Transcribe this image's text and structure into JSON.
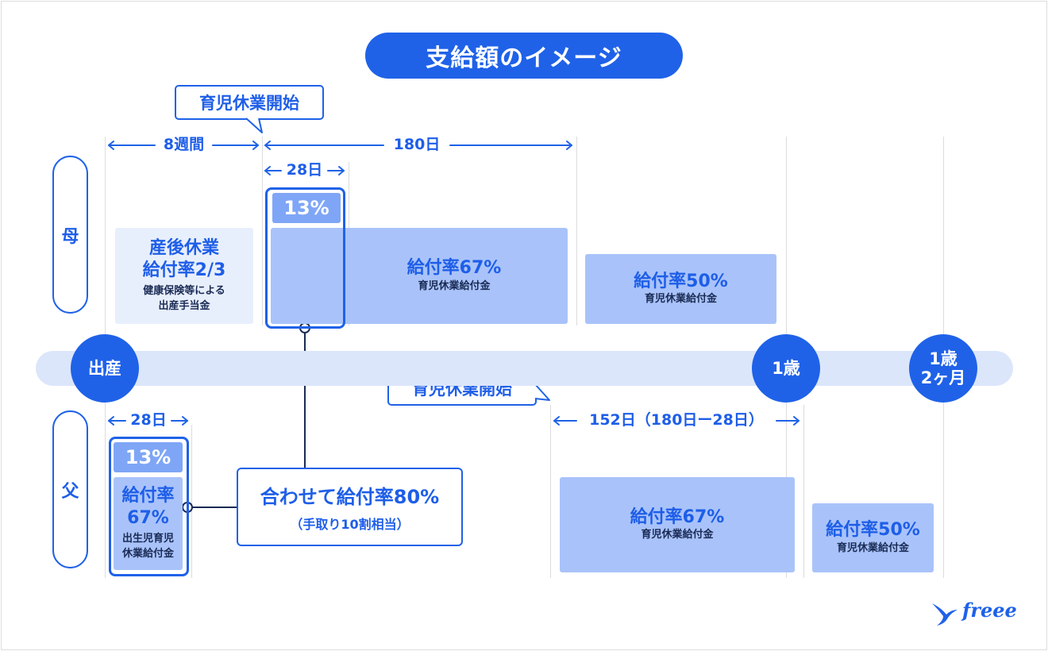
{
  "title": "支給額のイメージ",
  "callouts": {
    "mother_start": "育児休業開始",
    "father_start": "育児休業開始"
  },
  "rows": {
    "mother": "母",
    "father": "父"
  },
  "timeline": {
    "birth": "出産",
    "one_year": "1歳",
    "one_year_two_months_line1": "1歳",
    "one_year_two_months_line2": "2ヶ月"
  },
  "spans": {
    "eight_weeks": "8週間",
    "days_180": "180日",
    "days_28_mother": "28日",
    "days_28_father": "28日",
    "days_152": "152日（180日ー28日）"
  },
  "mother_blocks": {
    "postpartum_title1": "産後休業",
    "postpartum_title2": "給付率2/3",
    "postpartum_note1": "健康保険等による",
    "postpartum_note2": "出産手当金",
    "bonus_pct": "13%",
    "main_rate": "給付率67%",
    "main_label": "育児休業給付金",
    "later_rate": "給付率50%",
    "later_label": "育児休業給付金"
  },
  "father_blocks": {
    "bonus_pct": "13%",
    "birth_rate1": "給付率",
    "birth_rate2": "67%",
    "birth_label1": "出生児育児",
    "birth_label2": "休業給付金",
    "main_rate": "給付率67%",
    "main_label": "育児休業給付金",
    "later_rate": "給付率50%",
    "later_label": "育児休業給付金"
  },
  "combined": {
    "main": "合わせて給付率80%",
    "sub": "（手取り10割相当）"
  },
  "logo": "freee",
  "colors": {
    "primary": "#1f62e8",
    "light_block": "#e8effc",
    "mid_block": "#a9c3fa",
    "pct_block": "#7fa6f6",
    "timeline": "#dbe6fb"
  }
}
